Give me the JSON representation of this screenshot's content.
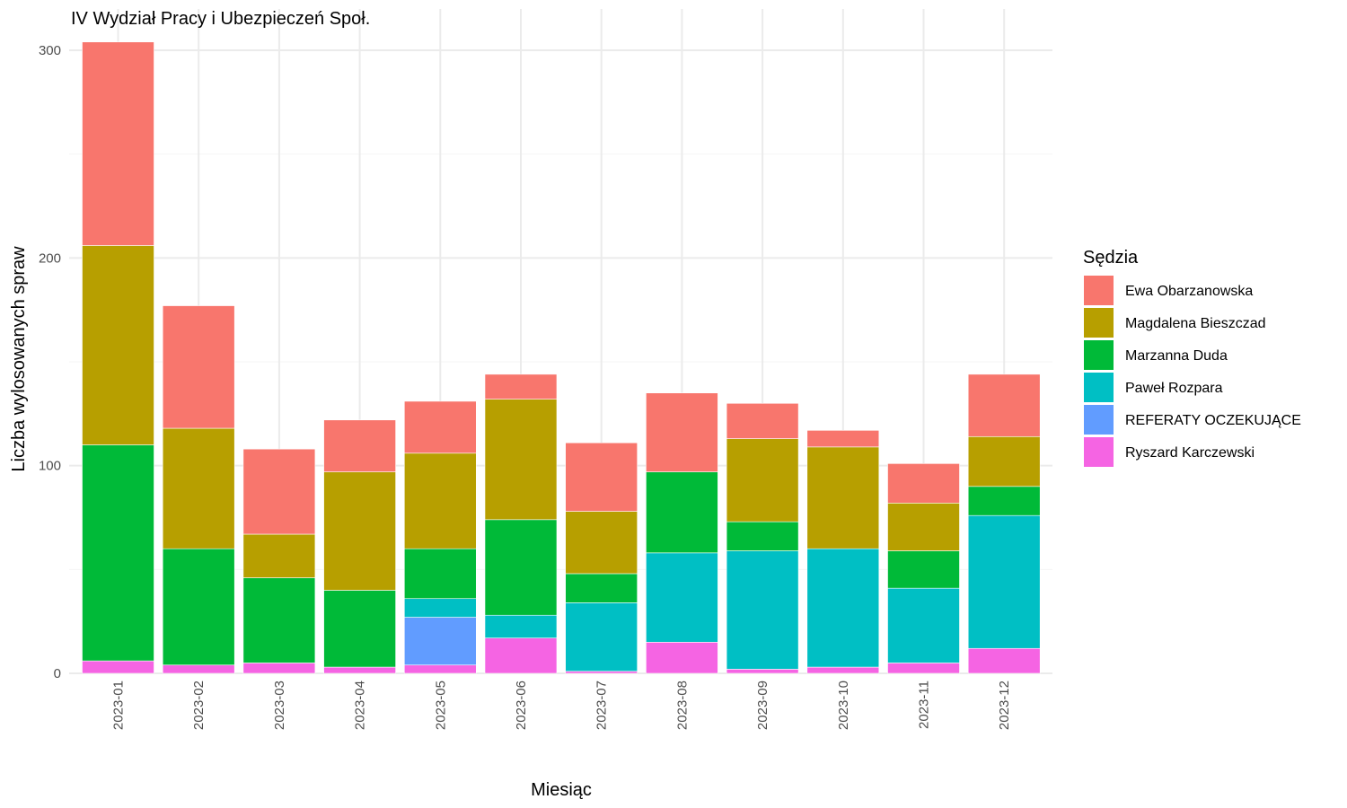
{
  "chart_data": {
    "type": "bar",
    "stacked": true,
    "title": "IV Wydział Pracy i Ubezpieczeń Społ.",
    "xlabel": "Miesiąc",
    "ylabel": "Liczba wylosowanych spraw",
    "ylim": [
      0,
      310
    ],
    "yticks": [
      0,
      100,
      200,
      300
    ],
    "grid": true,
    "legend_title": "Sędzia",
    "legend_position": "right",
    "categories": [
      "2023-01",
      "2023-02",
      "2023-03",
      "2023-04",
      "2023-05",
      "2023-06",
      "2023-07",
      "2023-08",
      "2023-09",
      "2023-10",
      "2023-11",
      "2023-12"
    ],
    "series": [
      {
        "name": "Ryszard Karczewski",
        "color": "#F564E3",
        "values": [
          6,
          4,
          5,
          3,
          4,
          17,
          1,
          15,
          2,
          3,
          5,
          12
        ]
      },
      {
        "name": "REFERATY OCZEKUJĄCE",
        "color": "#619CFF",
        "values": [
          0,
          0,
          0,
          0,
          23,
          0,
          0,
          0,
          0,
          0,
          0,
          0
        ]
      },
      {
        "name": "Paweł Rozpara",
        "color": "#00BFC4",
        "values": [
          0,
          0,
          0,
          0,
          9,
          11,
          33,
          43,
          57,
          57,
          36,
          64
        ]
      },
      {
        "name": "Marzanna Duda",
        "color": "#00BA38",
        "values": [
          104,
          56,
          41,
          37,
          24,
          46,
          14,
          39,
          14,
          0,
          18,
          14
        ]
      },
      {
        "name": "Magdalena Bieszczad",
        "color": "#B79F00",
        "values": [
          96,
          58,
          21,
          57,
          46,
          58,
          30,
          0,
          40,
          49,
          23,
          24
        ]
      },
      {
        "name": "Ewa Obarzanowska",
        "color": "#F8766D",
        "values": [
          98,
          59,
          41,
          25,
          25,
          12,
          33,
          38,
          17,
          8,
          19,
          30
        ]
      }
    ],
    "legend_order": [
      "Ewa Obarzanowska",
      "Magdalena Bieszczad",
      "Marzanna Duda",
      "Paweł Rozpara",
      "REFERATY OCZEKUJĄCE",
      "Ryszard Karczewski"
    ]
  }
}
